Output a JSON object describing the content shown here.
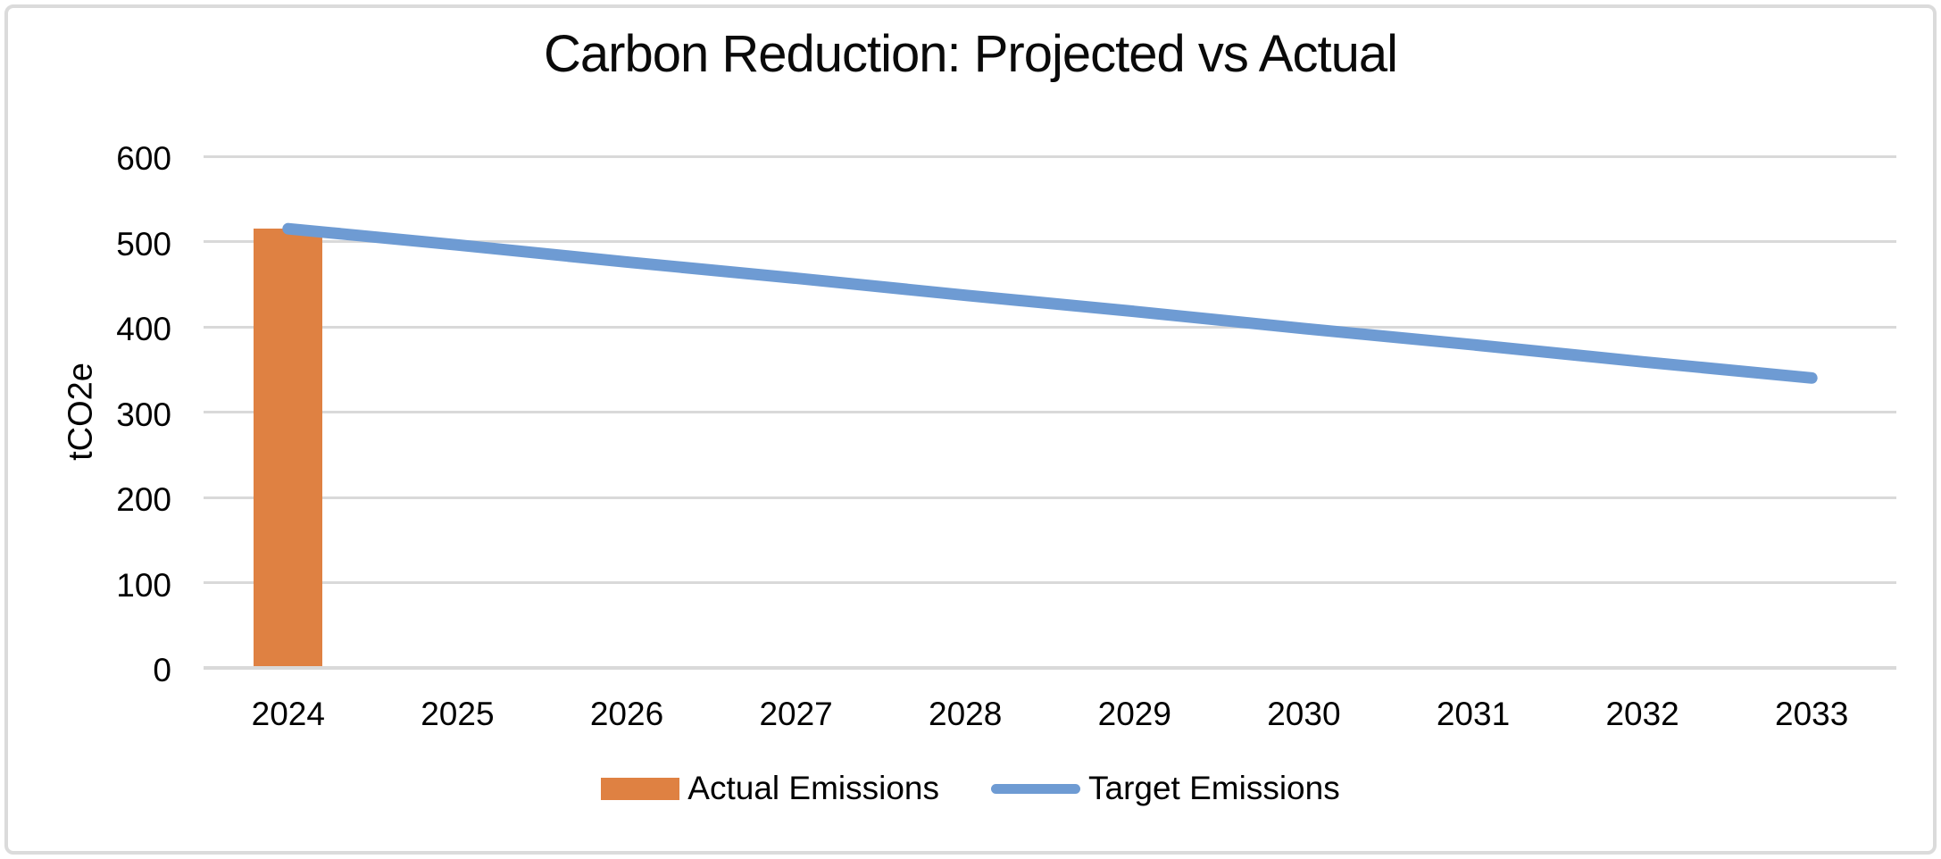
{
  "frame": {
    "background_color": "#FFFFFF",
    "border_color": "#DBDBDB"
  },
  "chart_data": {
    "type": "combo",
    "title": "Carbon Reduction: Projected vs Actual",
    "xlabel": "",
    "ylabel": "tCO2e",
    "categories": [
      "2024",
      "2025",
      "2026",
      "2027",
      "2028",
      "2029",
      "2030",
      "2031",
      "2032",
      "2033"
    ],
    "series": [
      {
        "name": "Actual Emissions",
        "type": "bar",
        "color": "#DF8142",
        "values": [
          515,
          null,
          null,
          null,
          null,
          null,
          null,
          null,
          null,
          null
        ]
      },
      {
        "name": "Target Emissions",
        "type": "line",
        "color": "#6E9BD3",
        "values": [
          515,
          496,
          476,
          457,
          437,
          418,
          398,
          379,
          359,
          340
        ]
      }
    ],
    "ylim": [
      0,
      600
    ],
    "yticks": [
      0,
      100,
      200,
      300,
      400,
      500,
      600
    ],
    "grid": "horizontal",
    "gridline_color": "#D9D9D9",
    "axis_line_color": "#D9D9D9",
    "legend_position": "bottom"
  },
  "legend": {
    "items": [
      {
        "label": "Actual Emissions",
        "swatch": "bar",
        "color": "#DF8142"
      },
      {
        "label": "Target Emissions",
        "swatch": "line",
        "color": "#6E9BD3"
      }
    ]
  }
}
